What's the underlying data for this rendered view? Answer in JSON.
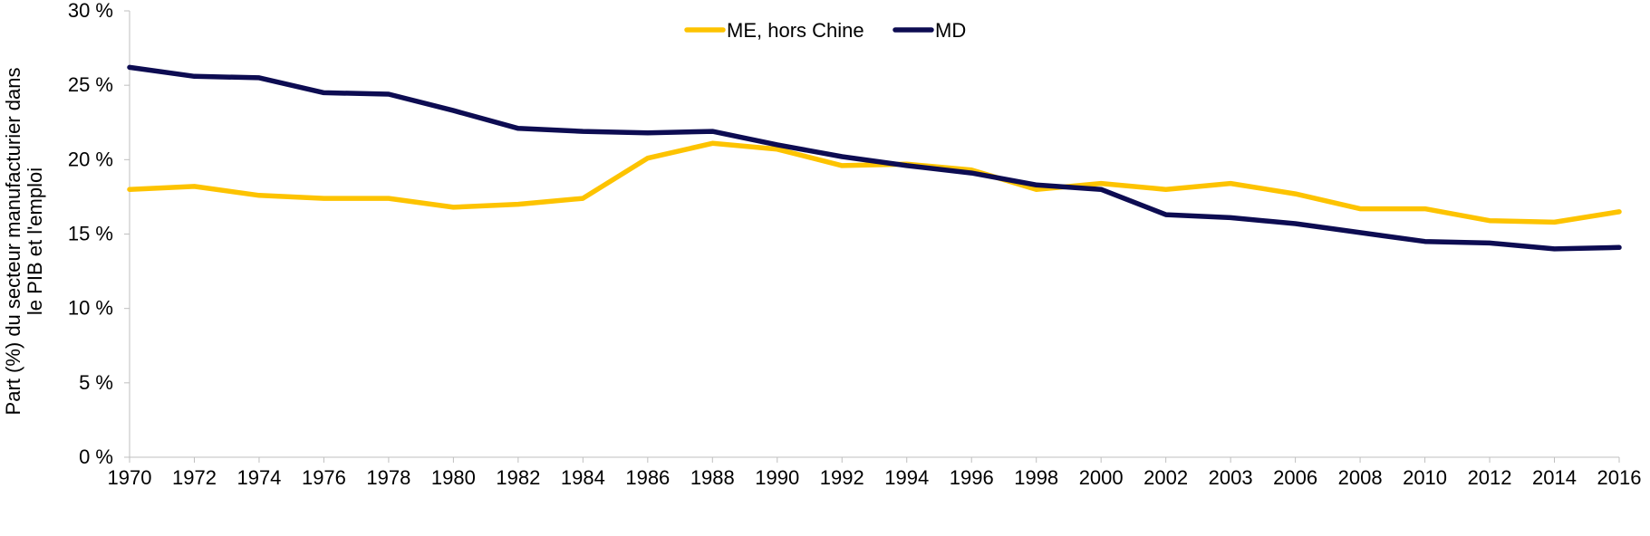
{
  "chart_data": {
    "type": "line",
    "title": "",
    "xlabel": "",
    "ylabel": "Part (%) du secteur manufacturier dans le PIB et l'emploi",
    "ylabel_lines": [
      "Part (%) du secteur manufacturier dans",
      "le PIB et l'emploi"
    ],
    "categories": [
      "1970",
      "1972",
      "1974",
      "1976",
      "1978",
      "1980",
      "1982",
      "1984",
      "1986",
      "1988",
      "1990",
      "1992",
      "1994",
      "1996",
      "1998",
      "2000",
      "2002",
      "2003",
      "2006",
      "2008",
      "2010",
      "2012",
      "2014",
      "2016"
    ],
    "ylim": [
      0,
      30
    ],
    "yticks": [
      0,
      5,
      10,
      15,
      20,
      25,
      30
    ],
    "ytick_labels": [
      "0 %",
      "5 %",
      "10 %",
      "15 %",
      "20 %",
      "25 %",
      "30 %"
    ],
    "grid": false,
    "legend_position": "top-center",
    "series": [
      {
        "name": "ME, hors Chine",
        "color": "#FDC300",
        "values": [
          18.0,
          18.2,
          17.6,
          17.4,
          17.4,
          16.8,
          17.0,
          17.4,
          20.1,
          21.1,
          20.7,
          19.6,
          19.7,
          19.3,
          18.0,
          18.4,
          18.0,
          18.4,
          17.7,
          16.7,
          16.7,
          15.9,
          15.8,
          16.5
        ]
      },
      {
        "name": "MD",
        "color": "#0D0C52",
        "values": [
          26.2,
          25.6,
          25.5,
          24.5,
          24.4,
          23.3,
          22.1,
          21.9,
          21.8,
          21.9,
          21.0,
          20.2,
          19.6,
          19.1,
          18.3,
          18.0,
          16.3,
          16.1,
          15.7,
          15.1,
          14.5,
          14.4,
          14.0,
          14.1
        ]
      }
    ]
  }
}
